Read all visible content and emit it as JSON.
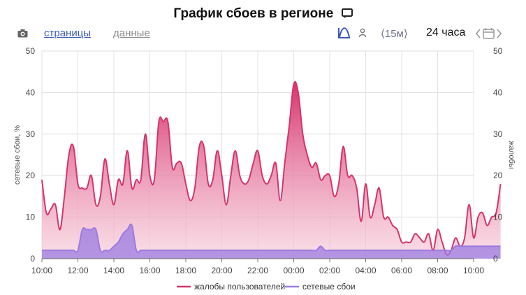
{
  "header": {
    "title": "График сбоев в регионе"
  },
  "toolbar": {
    "tab_pages": "страницы",
    "tab_data": "данные",
    "range_label": "⟨15м⟩",
    "period_label": "24 часа"
  },
  "icons": {
    "title": "speech-bubble-icon",
    "camera": "camera-icon",
    "chart_type": "chart-curve-icon",
    "user": "user-icon",
    "calendar": "calendar-icon"
  },
  "colors": {
    "complaints": "#d6336c",
    "outages": "#9b7be0"
  },
  "chart_data": {
    "type": "area",
    "y_left_label": "сетевые сбои, %",
    "y_right_label": "жалобы",
    "ylim": [
      0,
      50
    ],
    "yticks": [
      0,
      10,
      20,
      30,
      40,
      50
    ],
    "x_ticks": [
      "10:00",
      "12:00",
      "14:00",
      "16:00",
      "18:00",
      "20:00",
      "22:00",
      "00:00",
      "02:00",
      "04:00",
      "06:00",
      "08:00",
      "10:00"
    ],
    "xlim_hours": [
      0,
      24
    ],
    "grid": true,
    "legend_position": "bottom",
    "x_hours_step": 0.25,
    "series": [
      {
        "name": "жалобы пользователей",
        "color": "#d6336c",
        "values": [
          19,
          11,
          12,
          13,
          7,
          15,
          25,
          27,
          18,
          17,
          17,
          20,
          13,
          15,
          24,
          18,
          13,
          19,
          18,
          26,
          17,
          19,
          19,
          30,
          20,
          19,
          33,
          33,
          33,
          22,
          23,
          23,
          18,
          14,
          17,
          27,
          27,
          18,
          19,
          26,
          20,
          13,
          20,
          26,
          20,
          18,
          19,
          23,
          26,
          20,
          18,
          20,
          23,
          14,
          23,
          32,
          42,
          40,
          30,
          25,
          22,
          23,
          19,
          20,
          20,
          15,
          18,
          27,
          20,
          20,
          17,
          9,
          18,
          10,
          13,
          17,
          10,
          10,
          8,
          7,
          4,
          4,
          4,
          6,
          5,
          4,
          6,
          2,
          7,
          4,
          1,
          2,
          5,
          3,
          5,
          13,
          5,
          10,
          11,
          8,
          10,
          11,
          18
        ]
      },
      {
        "name": "сетевые сбои",
        "color": "#9b7be0",
        "values": [
          2,
          2,
          2,
          2,
          2,
          2,
          2,
          2,
          2,
          7,
          7,
          7,
          7,
          2,
          2,
          2,
          3,
          4,
          6,
          7,
          8,
          2,
          2,
          2,
          2,
          2,
          2,
          2,
          2,
          2,
          2,
          2,
          2,
          2,
          2,
          2,
          2,
          2,
          2,
          2,
          2,
          2,
          2,
          2,
          2,
          2,
          2,
          2,
          2,
          2,
          2,
          2,
          2,
          2,
          2,
          2,
          2,
          2,
          2,
          2,
          2,
          2,
          3,
          2,
          2,
          2,
          2,
          2,
          2,
          2,
          2,
          2,
          2,
          2,
          2,
          2,
          2,
          2,
          2,
          2,
          2,
          2,
          2,
          2,
          2,
          2,
          2,
          2,
          2,
          2,
          2,
          2,
          3,
          3,
          3,
          3,
          3,
          3,
          3,
          3,
          3,
          3,
          3
        ]
      }
    ]
  }
}
